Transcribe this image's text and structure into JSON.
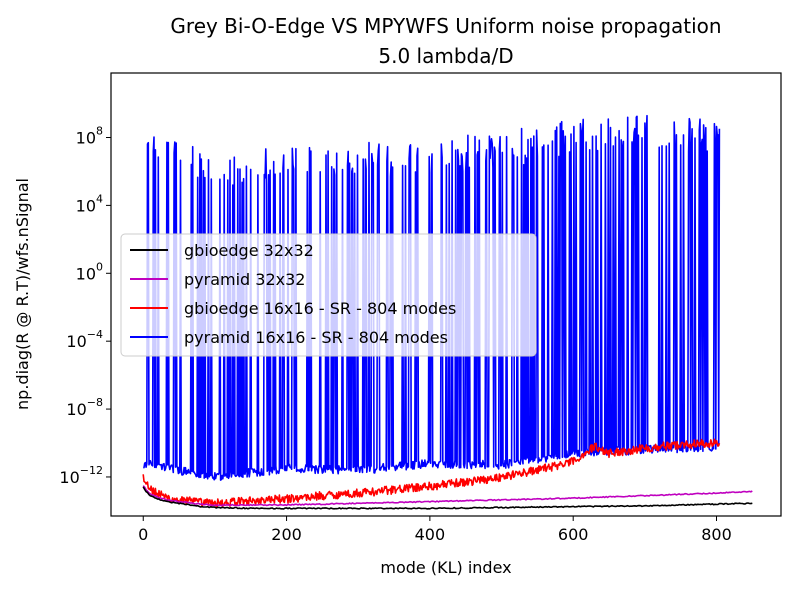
{
  "chart_data": {
    "type": "line",
    "title": "Grey Bi-O-Edge VS MPYWFS Uniform noise propagation",
    "subtitle": "5.0 lambda/D",
    "xlabel": "mode (KL) index",
    "ylabel": "np.diag(R @ R.T)/wfs.nSignal",
    "xlim": [
      -45,
      890
    ],
    "ylim_log10": [
      -14.3,
      11.8
    ],
    "y_scale": "log",
    "grid": false,
    "legend_position": "center-left",
    "xticks": [
      0,
      200,
      400,
      600,
      800
    ],
    "yticks_log10": [
      -12,
      -8,
      -4,
      0,
      4,
      8
    ],
    "series": [
      {
        "name": "gbioedge 32x32",
        "color": "#000000",
        "kind": "smooth",
        "x": [
          0,
          5,
          10,
          20,
          40,
          60,
          80,
          100,
          150,
          200,
          300,
          400,
          500,
          600,
          700,
          800,
          850
        ],
        "log10_y": [
          -12.6,
          -12.9,
          -13.1,
          -13.3,
          -13.5,
          -13.6,
          -13.75,
          -13.8,
          -13.85,
          -13.85,
          -13.85,
          -13.85,
          -13.8,
          -13.75,
          -13.7,
          -13.6,
          -13.55
        ]
      },
      {
        "name": "pyramid 32x32",
        "color": "#bf00bf",
        "kind": "smooth",
        "x": [
          0,
          5,
          10,
          20,
          40,
          60,
          80,
          100,
          150,
          200,
          300,
          400,
          500,
          600,
          700,
          800,
          850
        ],
        "log10_y": [
          -12.5,
          -12.8,
          -13.0,
          -13.2,
          -13.4,
          -13.5,
          -13.6,
          -13.65,
          -13.65,
          -13.65,
          -13.55,
          -13.45,
          -13.35,
          -13.25,
          -13.1,
          -12.95,
          -12.85
        ]
      },
      {
        "name": "gbioedge 16x16 - SR - 804 modes",
        "color": "#ff0000",
        "kind": "noisy",
        "x": [
          0,
          5,
          10,
          20,
          40,
          60,
          80,
          100,
          150,
          200,
          250,
          300,
          350,
          400,
          450,
          500,
          550,
          600,
          630,
          650,
          700,
          750,
          804
        ],
        "log10_y": [
          -12.0,
          -12.4,
          -12.7,
          -13.0,
          -13.3,
          -13.4,
          -13.5,
          -13.55,
          -13.4,
          -13.3,
          -13.1,
          -12.95,
          -12.75,
          -12.55,
          -12.3,
          -12.0,
          -11.6,
          -11.1,
          -10.2,
          -10.6,
          -10.3,
          -10.1,
          -10.0
        ],
        "noise_log10": 0.25
      },
      {
        "name": "pyramid 16x16 - SR - 804 modes",
        "color": "#0000ff",
        "kind": "spiky",
        "x": [
          0,
          100,
          200,
          300,
          400,
          500,
          600,
          700,
          804
        ],
        "low_log10": [
          -11.2,
          -12.0,
          -11.5,
          -11.6,
          -11.2,
          -11.3,
          -10.6,
          -10.4,
          -10.2
        ],
        "high_log10": [
          9.4,
          7.0,
          7.5,
          7.8,
          8.0,
          8.3,
          9.2,
          9.7,
          9.0
        ],
        "spike_density": 0.55
      }
    ]
  }
}
